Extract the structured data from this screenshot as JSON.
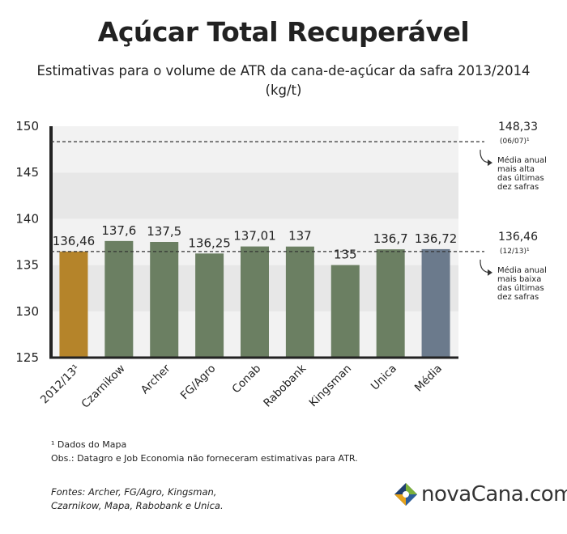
{
  "title": "Açúcar Total Recuperável",
  "subtitle_line1": "Estimativas para o volume de ATR da cana-de-açúcar da safra 2013/2014",
  "subtitle_line2": "(kg/t)",
  "chart_data": {
    "type": "bar",
    "title": "Açúcar Total Recuperável",
    "subtitle": "Estimativas para o volume de ATR da cana-de-açúcar da safra 2013/2014 (kg/t)",
    "categories": [
      "2012/13¹",
      "Czarnikow",
      "Archer",
      "FG/Agro",
      "Conab",
      "Rabobank",
      "Kingsman",
      "Unica",
      "Média"
    ],
    "values": [
      136.46,
      137.6,
      137.5,
      136.25,
      137.01,
      137,
      135,
      136.7,
      136.72
    ],
    "value_labels": [
      "136,46",
      "137,6",
      "137,5",
      "136,25",
      "137,01",
      "137",
      "135",
      "136,7",
      "136,72"
    ],
    "bar_colors": [
      "#b5842a",
      "#6b7f62",
      "#6b7f62",
      "#6b7f62",
      "#6b7f62",
      "#6b7f62",
      "#6b7f62",
      "#6b7f62",
      "#6b7a8c"
    ],
    "ylim": [
      125,
      150
    ],
    "yticks": [
      125,
      130,
      135,
      140,
      145,
      150
    ],
    "grid": false,
    "reference_lines": [
      {
        "value": 148.33,
        "label": "148,33",
        "sublabel": "(06/07)¹",
        "note": [
          "Média anual",
          "mais alta",
          "das últimas",
          "dez safras"
        ]
      },
      {
        "value": 136.46,
        "label": "136,46",
        "sublabel": "(12/13)¹",
        "note": [
          "Média anual",
          "mais baixa",
          "das últimas",
          "dez safras"
        ]
      }
    ]
  },
  "footnote": "¹ Dados do Mapa",
  "obs": "Obs.: Datagro e Job Economia não forneceram estimativas para ATR.",
  "sources_line1": "Fontes:  Archer, FG/Agro, Kingsman,",
  "sources_line2": "Czarnikow, Mapa, Rabobank e Unica.",
  "logo_text": "novaCana.com",
  "colors": {
    "band_light": "#f2f2f2",
    "band_dark": "#e7e7e7",
    "axis": "#222222"
  }
}
